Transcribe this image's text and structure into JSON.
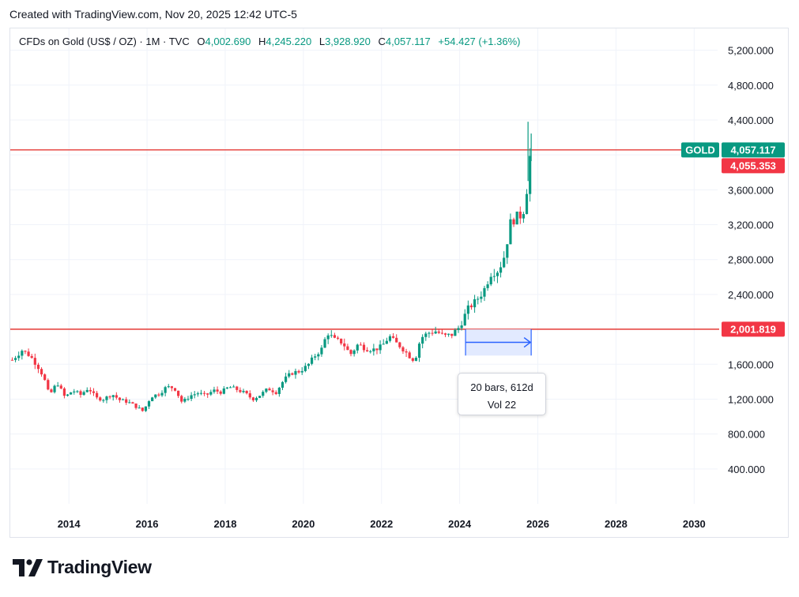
{
  "header": {
    "created": "Created with TradingView.com, Nov 20, 2025 12:42 UTC-5"
  },
  "legend": {
    "symbol": "CFDs on Gold (US$ / OZ) · 1M · TVC",
    "open_label": "O",
    "open": "4,002.690",
    "high_label": "H",
    "high": "4,245.220",
    "low_label": "L",
    "low": "3,928.920",
    "close_label": "C",
    "close": "4,057.117",
    "change": "+54.427 (+1.36%)"
  },
  "measure": {
    "line1": "20 bars, 612d",
    "line2": "Vol 22"
  },
  "brand": {
    "name": "TradingView"
  },
  "colors": {
    "up": "#089981",
    "down": "#f23645",
    "hline": "#e53935",
    "measure_fill": "#dbe5ff",
    "measure_line": "#2962ff",
    "grid": "#f0f3fa"
  },
  "chart_data": {
    "type": "candlestick",
    "title": "CFDs on Gold (US$ / OZ)",
    "interval": "1M",
    "x_axis": {
      "range": [
        2012.5,
        2030.6
      ],
      "ticks": [
        "2014",
        "2016",
        "2018",
        "2020",
        "2022",
        "2024",
        "2026",
        "2028",
        "2030"
      ]
    },
    "y_axis": {
      "range": [
        0,
        5450
      ],
      "position": "right",
      "ticks": [
        "400.000",
        "800.000",
        "1,200.000",
        "1,600.000",
        "2,000.000",
        "2,400.000",
        "2,800.000",
        "3,200.000",
        "3,600.000",
        "4,000.000",
        "4,400.000",
        "4,800.000",
        "5,200.000"
      ]
    },
    "price_labels": [
      {
        "symbol": "GOLD",
        "value": 4057.117,
        "text": "4,057.117",
        "color": "#089981"
      },
      {
        "value": 4055.353,
        "text": "4,055.353",
        "color": "#f23645"
      },
      {
        "value": 2001.819,
        "text": "2,001.819",
        "color": "#f23645"
      }
    ],
    "horizontal_lines": [
      4057.117,
      2001.819
    ],
    "measure_range": {
      "from": 2024.15,
      "to": 2025.83,
      "low": 1700,
      "high": 2001.819
    },
    "close_path": [
      [
        2012.55,
        1650
      ],
      [
        2012.8,
        1760
      ],
      [
        2013.0,
        1700
      ],
      [
        2013.2,
        1580
      ],
      [
        2013.35,
        1460
      ],
      [
        2013.5,
        1240
      ],
      [
        2013.7,
        1390
      ],
      [
        2013.9,
        1220
      ],
      [
        2014.1,
        1300
      ],
      [
        2014.3,
        1250
      ],
      [
        2014.5,
        1330
      ],
      [
        2014.7,
        1210
      ],
      [
        2014.9,
        1200
      ],
      [
        2015.1,
        1260
      ],
      [
        2015.3,
        1190
      ],
      [
        2015.5,
        1170
      ],
      [
        2015.7,
        1120
      ],
      [
        2015.9,
        1060
      ],
      [
        2016.1,
        1230
      ],
      [
        2016.3,
        1260
      ],
      [
        2016.5,
        1340
      ],
      [
        2016.7,
        1330
      ],
      [
        2016.9,
        1160
      ],
      [
        2017.1,
        1240
      ],
      [
        2017.3,
        1270
      ],
      [
        2017.5,
        1240
      ],
      [
        2017.7,
        1300
      ],
      [
        2017.9,
        1280
      ],
      [
        2018.1,
        1340
      ],
      [
        2018.3,
        1310
      ],
      [
        2018.5,
        1270
      ],
      [
        2018.7,
        1200
      ],
      [
        2018.9,
        1250
      ],
      [
        2019.1,
        1320
      ],
      [
        2019.3,
        1280
      ],
      [
        2019.5,
        1420
      ],
      [
        2019.7,
        1500
      ],
      [
        2019.9,
        1520
      ],
      [
        2020.1,
        1580
      ],
      [
        2020.3,
        1700
      ],
      [
        2020.5,
        1790
      ],
      [
        2020.6,
        1970
      ],
      [
        2020.8,
        1880
      ],
      [
        2021.0,
        1850
      ],
      [
        2021.2,
        1710
      ],
      [
        2021.4,
        1830
      ],
      [
        2021.6,
        1780
      ],
      [
        2021.8,
        1770
      ],
      [
        2022.0,
        1800
      ],
      [
        2022.2,
        1920
      ],
      [
        2022.35,
        1850
      ],
      [
        2022.5,
        1800
      ],
      [
        2022.7,
        1700
      ],
      [
        2022.85,
        1640
      ],
      [
        2023.0,
        1900
      ],
      [
        2023.2,
        1960
      ],
      [
        2023.4,
        1980
      ],
      [
        2023.6,
        1920
      ],
      [
        2023.8,
        1940
      ],
      [
        2024.0,
        2030
      ],
      [
        2024.2,
        2230
      ],
      [
        2024.4,
        2320
      ],
      [
        2024.6,
        2430
      ],
      [
        2024.8,
        2640
      ],
      [
        2025.0,
        2680
      ],
      [
        2025.15,
        2850
      ],
      [
        2025.3,
        3220
      ],
      [
        2025.45,
        3290
      ],
      [
        2025.6,
        3310
      ],
      [
        2025.7,
        3480
      ],
      [
        2025.75,
        3850
      ],
      [
        2025.83,
        4057
      ]
    ]
  }
}
